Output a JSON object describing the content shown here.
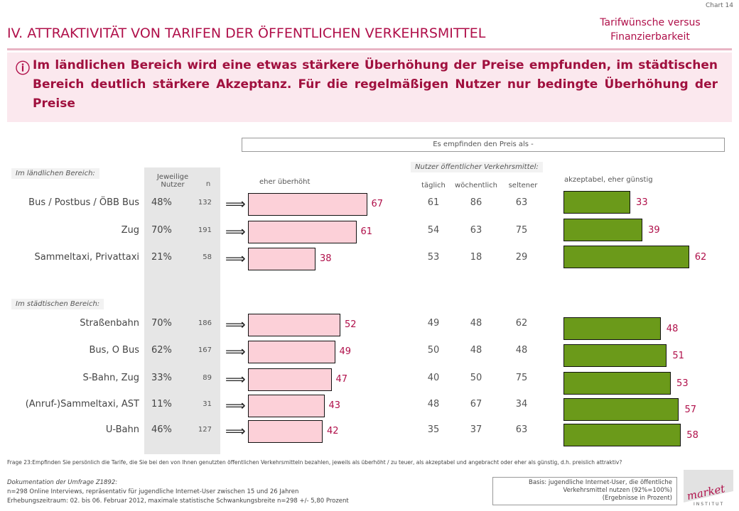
{
  "chart_id": "Chart 14",
  "section_title": "IV. ATTRAKTIVITÄT VON TARIFEN DER ÖFFENTLICHEN VERKEHRSMITTEL",
  "subtitle_line1": "Tarifwünsche versus",
  "subtitle_line2": "Finanzierbarkeit",
  "info_icon": "ⓘ",
  "info_text": "Im ländlichen Bereich wird eine etwas stärkere Überhöhung der Preise empfunden, im städtischen Bereich deutlich stärkere Akzeptanz. Für die regelmäßigen Nutzer nur bedingte Überhöhung der Preise",
  "header": "Es empfinden den Preis als -",
  "labels": {
    "rural": "Im ländlichen Bereich:",
    "urban": "Im städtischen Bereich:",
    "jeweilige": "Jeweilige",
    "nutzer": "Nutzer",
    "n": "n",
    "eher_ueberhoeht": "eher überhöht",
    "akzeptabel": "akzeptabel, eher günstig",
    "freq_header": "Nutzer öffentlicher Verkehrsmittel:",
    "taeglich": "täglich",
    "woechentlich": "wöchentlich",
    "seltener": "seltener"
  },
  "footer": {
    "question": "Frage 23:Empfinden Sie persönlich die Tarife, die Sie bei den von Ihnen genutzten öffentlichen Verkehrsmitteln bezahlen, jeweils als überhöht / zu teuer, als akzeptabel und angebracht oder eher als günstig, d.h. preislich attraktiv?",
    "doc_title": "Dokumentation der Umfrage Z1892:",
    "doc_line1": "n=298 Online Interviews, repräsentativ für jugendliche Internet-User zwischen 15 und 26 Jahren",
    "doc_line2": "Erhebungszeitraum: 02. bis 06. Februar 2012, maximale statistische Schwankungsbreite n=298 +/- 5,80 Prozent",
    "basis_line1": "Basis: jugendliche Internet-User, die öffentliche",
    "basis_line2": "Verkehrsmittel nutzen (92%=100%)",
    "basis_line3": "(Ergebnisse in Prozent)",
    "logo_word": "market",
    "logo_sub": "INSTITUT"
  },
  "colors": {
    "accent": "#b0104a",
    "bar_red": "#fcd0d8",
    "bar_green": "#6b9a1a"
  },
  "arrow_glyph": "⟹",
  "chart_data": {
    "type": "bar",
    "title": "Es empfinden den Preis als -",
    "groups": [
      {
        "name": "Im ländlichen Bereich:",
        "rows": [
          {
            "label": "Bus / Postbus / ÖBB Bus",
            "share": "48%",
            "n": 132,
            "ueberhoeht": 67,
            "taeglich": 61,
            "woechentlich": 86,
            "seltener": 63,
            "akzeptabel": 33
          },
          {
            "label": "Zug",
            "share": "70%",
            "n": 191,
            "ueberhoeht": 61,
            "taeglich": 54,
            "woechentlich": 63,
            "seltener": 75,
            "akzeptabel": 39
          },
          {
            "label": "Sammeltaxi, Privattaxi",
            "share": "21%",
            "n": 58,
            "ueberhoeht": 38,
            "taeglich": 53,
            "woechentlich": 18,
            "seltener": 29,
            "akzeptabel": 62
          }
        ]
      },
      {
        "name": "Im städtischen Bereich:",
        "rows": [
          {
            "label": "Straßenbahn",
            "share": "70%",
            "n": 186,
            "ueberhoeht": 52,
            "taeglich": 49,
            "woechentlich": 48,
            "seltener": 62,
            "akzeptabel": 48
          },
          {
            "label": "Bus, O Bus",
            "share": "62%",
            "n": 167,
            "ueberhoeht": 49,
            "taeglich": 50,
            "woechentlich": 48,
            "seltener": 48,
            "akzeptabel": 51
          },
          {
            "label": "S-Bahn, Zug",
            "share": "33%",
            "n": 89,
            "ueberhoeht": 47,
            "taeglich": 40,
            "woechentlich": 50,
            "seltener": 75,
            "akzeptabel": 53
          },
          {
            "label": "(Anruf-)Sammeltaxi, AST",
            "share": "11%",
            "n": 31,
            "ueberhoeht": 43,
            "taeglich": 48,
            "woechentlich": 67,
            "seltener": 34,
            "akzeptabel": 57
          },
          {
            "label": "U-Bahn",
            "share": "46%",
            "n": 127,
            "ueberhoeht": 42,
            "taeglich": 35,
            "woechentlich": 37,
            "seltener": 63,
            "akzeptabel": 58
          }
        ]
      }
    ]
  }
}
